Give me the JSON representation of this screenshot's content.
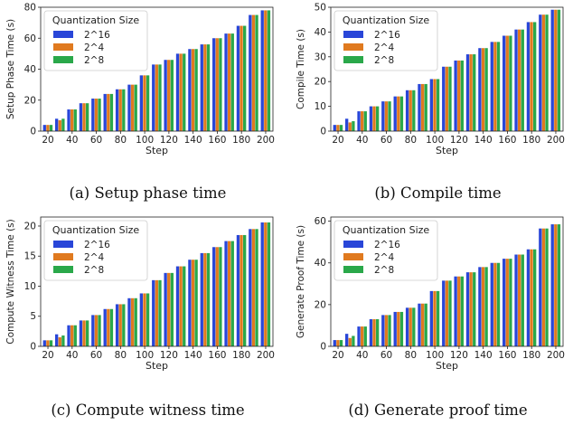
{
  "chart_data": [
    {
      "id": "a",
      "type": "bar",
      "caption": "(a) Setup phase time",
      "xlabel": "Step",
      "ylabel": "Setup Phase Time (s)",
      "ylim": [
        0,
        80
      ],
      "yticks": [
        0,
        20,
        40,
        60,
        80
      ],
      "grid": false,
      "legend_title": "Quantization Size",
      "legend_position": "top-left",
      "categories": [
        20,
        30,
        40,
        50,
        60,
        70,
        80,
        90,
        100,
        110,
        120,
        130,
        140,
        150,
        160,
        170,
        180,
        190,
        200
      ],
      "xticks": [
        20,
        40,
        60,
        80,
        100,
        120,
        140,
        160,
        180,
        200
      ],
      "series": [
        {
          "name": "2^16",
          "color": "#2946d8",
          "values": [
            4,
            8,
            14,
            18,
            21,
            24,
            27,
            30,
            36,
            43,
            46,
            50,
            53,
            56,
            60,
            63,
            68,
            75,
            78
          ]
        },
        {
          "name": "2^4",
          "color": "#e07a1f",
          "values": [
            4,
            7,
            14,
            18,
            21,
            24,
            27,
            30,
            36,
            43,
            46,
            50,
            53,
            56,
            60,
            63,
            68,
            75,
            78
          ]
        },
        {
          "name": "2^8",
          "color": "#2aa84a",
          "values": [
            4,
            8,
            14,
            18,
            21,
            24,
            27,
            30,
            36,
            43,
            46,
            50,
            53,
            56,
            60,
            63,
            68,
            75,
            78
          ]
        }
      ]
    },
    {
      "id": "b",
      "type": "bar",
      "caption": "(b) Compile time",
      "xlabel": "Step",
      "ylabel": "Compile Time (s)",
      "ylim": [
        0,
        50
      ],
      "yticks": [
        0,
        10,
        20,
        30,
        40,
        50
      ],
      "grid": false,
      "legend_title": "Quantization Size",
      "legend_position": "top-left",
      "categories": [
        20,
        30,
        40,
        50,
        60,
        70,
        80,
        90,
        100,
        110,
        120,
        130,
        140,
        150,
        160,
        170,
        180,
        190,
        200
      ],
      "xticks": [
        20,
        40,
        60,
        80,
        100,
        120,
        140,
        160,
        180,
        200
      ],
      "series": [
        {
          "name": "2^16",
          "color": "#2946d8",
          "values": [
            2.5,
            5,
            8,
            10,
            12,
            14,
            16.5,
            19,
            21,
            26,
            28.5,
            31,
            33.5,
            36,
            38.5,
            41,
            44,
            47,
            49
          ]
        },
        {
          "name": "2^4",
          "color": "#e07a1f",
          "values": [
            2.5,
            3.5,
            8,
            10,
            12,
            14,
            16.5,
            19,
            21,
            26,
            28.5,
            31,
            33.5,
            36,
            38.5,
            41,
            44,
            47,
            49
          ]
        },
        {
          "name": "2^8",
          "color": "#2aa84a",
          "values": [
            2.5,
            4,
            8,
            10,
            12,
            14,
            16.5,
            19,
            21,
            26,
            28.5,
            31,
            33.5,
            36,
            38.5,
            41,
            44,
            47,
            49
          ]
        }
      ]
    },
    {
      "id": "c",
      "type": "bar",
      "caption": "(c) Compute witness time",
      "xlabel": "Step",
      "ylabel": "Compute Witness Time (s)",
      "ylim": [
        0,
        21.5
      ],
      "yticks": [
        0,
        5,
        10,
        15,
        20
      ],
      "grid": false,
      "legend_title": "Quantization Size",
      "legend_position": "top-left",
      "categories": [
        20,
        30,
        40,
        50,
        60,
        70,
        80,
        90,
        100,
        110,
        120,
        130,
        140,
        150,
        160,
        170,
        180,
        190,
        200
      ],
      "xticks": [
        20,
        40,
        60,
        80,
        100,
        120,
        140,
        160,
        180,
        200
      ],
      "series": [
        {
          "name": "2^16",
          "color": "#2946d8",
          "values": [
            1,
            2,
            3.5,
            4.3,
            5.2,
            6.2,
            7,
            8,
            8.8,
            11,
            12.2,
            13.3,
            14.4,
            15.5,
            16.5,
            17.5,
            18.5,
            19.5,
            20.6
          ]
        },
        {
          "name": "2^4",
          "color": "#e07a1f",
          "values": [
            1,
            1.5,
            3.5,
            4.3,
            5.2,
            6.2,
            7,
            8,
            8.8,
            11,
            12.2,
            13.3,
            14.4,
            15.5,
            16.5,
            17.5,
            18.5,
            19.5,
            20.6
          ]
        },
        {
          "name": "2^8",
          "color": "#2aa84a",
          "values": [
            1,
            1.8,
            3.5,
            4.3,
            5.2,
            6.2,
            7,
            8,
            8.8,
            11,
            12.2,
            13.3,
            14.4,
            15.5,
            16.5,
            17.5,
            18.5,
            19.5,
            20.6
          ]
        }
      ]
    },
    {
      "id": "d",
      "type": "bar",
      "caption": "(d) Generate proof time",
      "xlabel": "Step",
      "ylabel": "Generate Proof Time (s)",
      "ylim": [
        0,
        62
      ],
      "yticks": [
        0,
        20,
        40,
        60
      ],
      "grid": false,
      "legend_title": "Quantization Size",
      "legend_position": "top-left",
      "categories": [
        20,
        30,
        40,
        50,
        60,
        70,
        80,
        90,
        100,
        110,
        120,
        130,
        140,
        150,
        160,
        170,
        180,
        190,
        200
      ],
      "xticks": [
        20,
        40,
        60,
        80,
        100,
        120,
        140,
        160,
        180,
        200
      ],
      "series": [
        {
          "name": "2^16",
          "color": "#2946d8",
          "values": [
            3,
            6,
            9.5,
            13,
            15,
            16.5,
            18.5,
            20.5,
            26.5,
            31.5,
            33.5,
            35.5,
            38,
            40,
            42,
            44,
            46.5,
            56.5,
            58.5
          ]
        },
        {
          "name": "2^4",
          "color": "#e07a1f",
          "values": [
            3,
            4,
            9.5,
            13,
            15,
            16.5,
            18.5,
            20.5,
            26.5,
            31.5,
            33.5,
            35.5,
            38,
            40,
            42,
            44,
            46.5,
            56.5,
            58.5
          ]
        },
        {
          "name": "2^8",
          "color": "#2aa84a",
          "values": [
            3,
            5,
            9.5,
            13,
            15,
            16.5,
            18.5,
            20.5,
            26.5,
            31.5,
            33.5,
            35.5,
            38,
            40,
            42,
            44,
            46.5,
            56.5,
            58.5
          ]
        }
      ]
    }
  ]
}
